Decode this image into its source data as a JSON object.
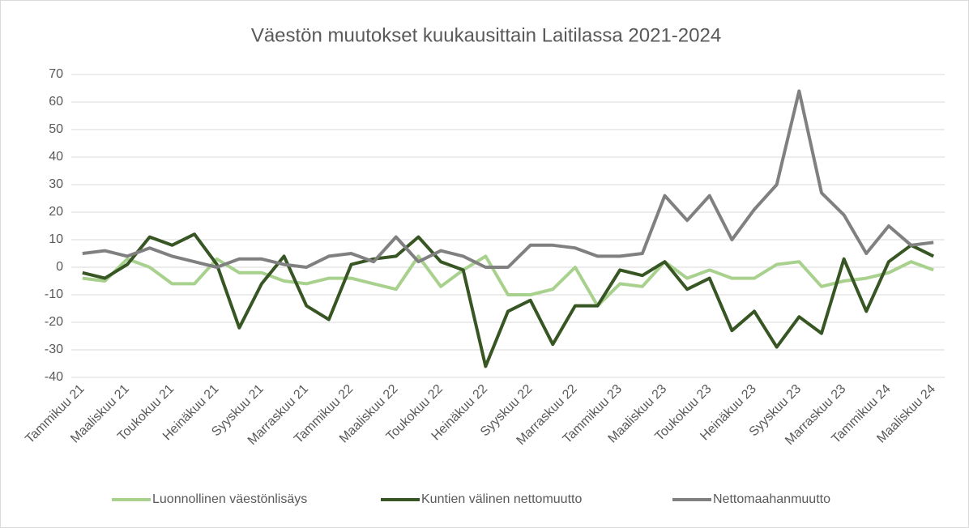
{
  "chart_data": {
    "type": "line",
    "title": "Väestön muutokset kuukausittain Laitilassa 2021-2024",
    "categories": [
      "Tammikuu 21",
      null,
      "Maaliskuu 21",
      null,
      "Toukokuu 21",
      null,
      "Heinäkuu 21",
      null,
      "Syyskuu 21",
      null,
      "Marraskuu 21",
      null,
      "Tammikuu 22",
      null,
      "Maaliskuu 22",
      null,
      "Toukokuu 22",
      null,
      "Heinäkuu 22",
      null,
      "Syyskuu 22",
      null,
      "Marraskuu 22",
      null,
      "Tammikuu 23",
      null,
      "Maaliskuu 23",
      null,
      "Toukokuu 23",
      null,
      "Heinäkuu 23",
      null,
      "Syyskuu 23",
      null,
      "Marraskuu 23",
      null,
      "Tammikuu 24",
      null,
      "Maaliskuu 24"
    ],
    "series": [
      {
        "name": "Luonnollinen väestönlisäys",
        "color": "#a9d18e",
        "values": [
          -4,
          -5,
          3,
          0,
          -6,
          -6,
          3,
          -2,
          -2,
          -5,
          -6,
          -4,
          -4,
          -6,
          -8,
          4,
          -7,
          -1,
          4,
          -10,
          -10,
          -8,
          0,
          -14,
          -6,
          -7,
          2,
          -4,
          -1,
          -4,
          -4,
          1,
          2,
          -7,
          -5,
          -4,
          -2,
          2,
          -1
        ]
      },
      {
        "name": "Kuntien välinen nettomuutto",
        "color": "#375623",
        "values": [
          -2,
          -4,
          1,
          11,
          8,
          12,
          1,
          -22,
          -6,
          4,
          -14,
          -19,
          1,
          3,
          4,
          11,
          2,
          -1,
          -36,
          -16,
          -12,
          -28,
          -14,
          -14,
          -1,
          -3,
          2,
          -8,
          -4,
          -23,
          -16,
          -29,
          -18,
          -24,
          3,
          -16,
          2,
          8,
          4
        ]
      },
      {
        "name": "Nettomaahanmuutto",
        "color": "#808080",
        "values": [
          5,
          6,
          4,
          7,
          4,
          2,
          0,
          3,
          3,
          1,
          0,
          4,
          5,
          2,
          11,
          2,
          6,
          4,
          0,
          0,
          8,
          8,
          7,
          4,
          4,
          5,
          26,
          17,
          26,
          10,
          21,
          30,
          64,
          27,
          19,
          5,
          15,
          8,
          9
        ]
      }
    ],
    "ylim": [
      -40,
      70
    ],
    "yticks": [
      -40,
      -30,
      -20,
      -10,
      0,
      10,
      20,
      30,
      40,
      50,
      60,
      70
    ],
    "grid": true,
    "legend": "bottom"
  }
}
